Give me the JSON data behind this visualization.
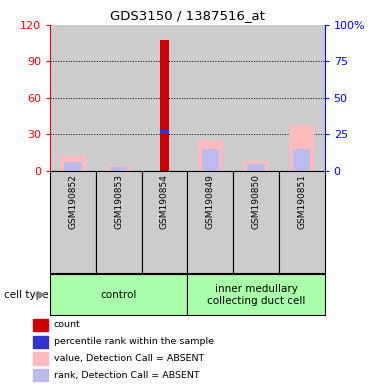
{
  "title": "GDS3150 / 1387516_at",
  "samples": [
    "GSM190852",
    "GSM190853",
    "GSM190854",
    "GSM190849",
    "GSM190850",
    "GSM190851"
  ],
  "groups": [
    {
      "label": "control",
      "indices": [
        0,
        1,
        2
      ],
      "color": "#aaffaa"
    },
    {
      "label": "inner medullary\ncollecting duct cell",
      "indices": [
        3,
        4,
        5
      ],
      "color": "#aaffaa"
    }
  ],
  "ylim_left": [
    0,
    120
  ],
  "ylim_right": [
    0,
    100
  ],
  "yticks_left": [
    0,
    30,
    60,
    90,
    120
  ],
  "ytick_labels_left": [
    "0",
    "30",
    "60",
    "90",
    "120"
  ],
  "ytick_labels_right": [
    "0",
    "25",
    "50",
    "75",
    "100%"
  ],
  "red_bars": [
    0,
    0,
    108,
    0,
    0,
    0
  ],
  "blue_bar_val": 32,
  "blue_bar_idx": 2,
  "pink_bars": [
    12,
    4,
    0,
    25,
    8,
    38
  ],
  "lavender_bars": [
    7,
    3,
    0,
    18,
    6,
    18
  ],
  "red_color": "#cc0000",
  "blue_color": "#3333cc",
  "pink_color": "#ffbbbb",
  "lavender_color": "#bbbbee",
  "gray_bg": "#cccccc",
  "green_bg": "#99ee99",
  "legend_items": [
    {
      "label": "count",
      "color": "#cc0000"
    },
    {
      "label": "percentile rank within the sample",
      "color": "#3333cc"
    },
    {
      "label": "value, Detection Call = ABSENT",
      "color": "#ffbbbb"
    },
    {
      "label": "rank, Detection Call = ABSENT",
      "color": "#bbbbee"
    }
  ]
}
